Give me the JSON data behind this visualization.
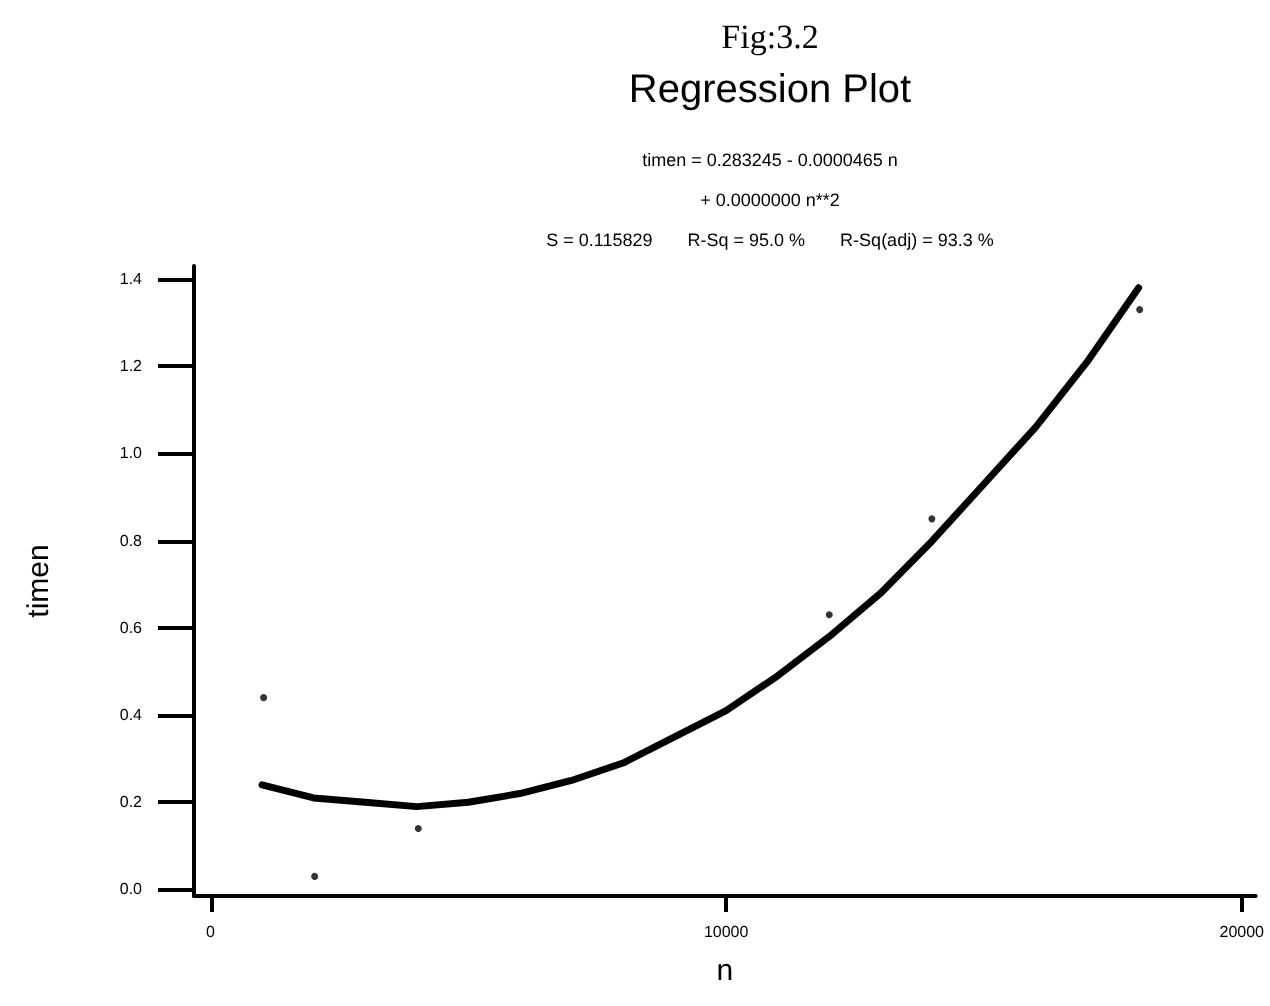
{
  "chart_data": {
    "type": "scatter",
    "annotations": [
      "Fig:3.2"
    ],
    "title": "Regression Plot",
    "subtitle": "timen = 0.283245 - 0.0000465 n\n+ 0.0000000 n**2\nS = 0.115829       R-Sq = 95.0 %       R-Sq(adj) = 93.3 %",
    "xlabel": "n",
    "ylabel": "timen",
    "series": [
      {
        "color": "#000000",
        "marker": "circle",
        "x": [
          1030,
          2020,
          4030,
          12000,
          13990,
          18020
        ],
        "values": [
          0.44,
          0.03,
          0.14,
          0.63,
          0.85,
          1.33
        ]
      },
      {
        "type": "line",
        "color": "#000000",
        "marker": "none",
        "line_style": "solid",
        "x": [
          1000,
          2000,
          3000,
          4000,
          5000,
          6000,
          7000,
          8000,
          9000,
          10000,
          11000,
          12000,
          13000,
          14000,
          15000,
          16000,
          17000,
          18000
        ],
        "values": [
          0.24,
          0.21,
          0.2,
          0.19,
          0.2,
          0.22,
          0.25,
          0.29,
          0.35,
          0.41,
          0.49,
          0.58,
          0.68,
          0.8,
          0.93,
          1.06,
          1.21,
          1.38
        ]
      }
    ],
    "xlim": [
      -320,
      20270
    ],
    "xticks": [
      0,
      10000,
      20000
    ],
    "ylim": [
      -0.015,
      1.43
    ],
    "yticks": [
      {
        "value": 0,
        "label": "0.0"
      },
      0.2,
      0.4,
      0.6,
      0.8,
      {
        "value": 1,
        "label": "1.0"
      },
      1.2,
      1.4
    ],
    "grid": false
  }
}
